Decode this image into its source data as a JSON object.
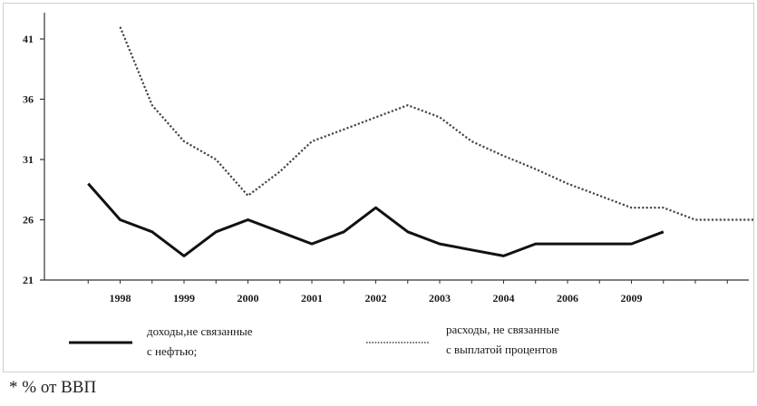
{
  "chart_data": {
    "type": "line",
    "categories": [
      "1998",
      "1999",
      "2000",
      "2001",
      "2002",
      "2003",
      "2004",
      "2006",
      "2009"
    ],
    "y_ticks": [
      "41",
      "36",
      "31",
      "26",
      "21"
    ],
    "ylim": [
      21,
      43
    ],
    "grid": false,
    "legend_position": "bottom",
    "series": [
      {
        "name": "доходы,не связанные с нефтью;",
        "color": "#111111",
        "style": "solid",
        "x": [
          0.5,
          1,
          1.5,
          2,
          2.5,
          3,
          3.5,
          4,
          4.5,
          5,
          5.5,
          6,
          6.5,
          7,
          7.5,
          8,
          8.5,
          9,
          9.5
        ],
        "values": [
          29,
          26,
          25,
          23,
          25,
          26,
          25,
          24,
          25,
          27,
          25,
          24,
          23.5,
          23,
          24,
          24,
          24,
          24,
          25
        ]
      },
      {
        "name": "расходы, не связанные с выплатой процентов",
        "color": "#444444",
        "style": "dotted",
        "x": [
          1,
          1.5,
          2,
          2.5,
          3,
          3.5,
          4,
          4.5,
          5,
          5.5,
          6,
          6.5,
          7,
          7.5,
          8,
          8.5,
          9,
          9.5,
          10,
          10.5,
          11
        ],
        "values": [
          42,
          35.5,
          32.5,
          31,
          28,
          30,
          32.5,
          33.5,
          34.5,
          35.5,
          34.5,
          32.5,
          31.3,
          30.2,
          29,
          28,
          27,
          27,
          26,
          26,
          26
        ]
      }
    ],
    "legend": [
      {
        "label_line1": "доходы,не связанные",
        "label_line2": "с нефтью;"
      },
      {
        "label_line1": "расходы, не связанные",
        "label_line2": "с выплатой процентов"
      }
    ]
  },
  "footnote": "* % от ВВП"
}
